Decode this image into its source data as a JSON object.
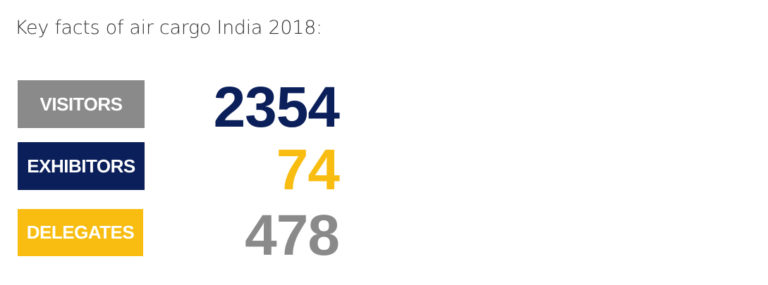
{
  "title": "Key facts of air cargo India 2018:",
  "facts": [
    {
      "label": "VISITORS",
      "value": "2354",
      "label_bg": "#8a8a8a",
      "value_color": "#0b1f5a"
    },
    {
      "label": "EXHIBITORS",
      "value": "74",
      "label_bg": "#0b1f5a",
      "value_color": "#f8bd10"
    },
    {
      "label": "DELEGATES",
      "value": "478",
      "label_bg": "#f8bd10",
      "value_color": "#8a8a8a"
    }
  ]
}
